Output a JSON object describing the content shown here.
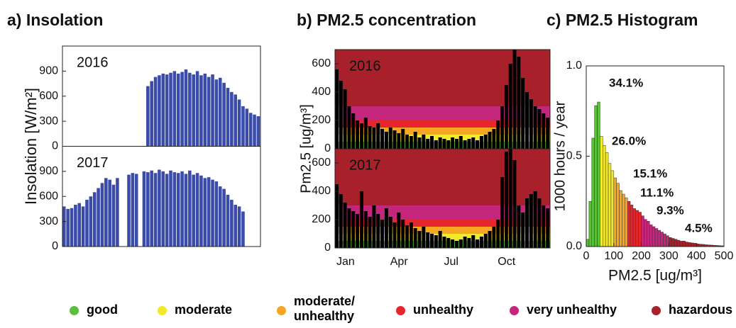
{
  "chart_data": [
    {
      "type": "bar",
      "title": "a) Insolation",
      "ylabel": "Insolation [W/m²]",
      "color": "#3b4ba8",
      "ylim": [
        0,
        1200
      ],
      "yticks": [
        0,
        300,
        600,
        900
      ],
      "series": [
        {
          "name": "2016",
          "values": [
            0,
            0,
            0,
            0,
            0,
            0,
            0,
            0,
            0,
            0,
            0,
            0,
            0,
            0,
            0,
            0,
            0,
            0,
            0,
            0,
            0,
            0,
            720,
            780,
            830,
            850,
            870,
            860,
            880,
            900,
            870,
            890,
            920,
            880,
            860,
            900,
            850,
            870,
            830,
            860,
            800,
            820,
            760,
            700,
            650,
            620,
            560,
            480,
            450,
            400,
            380,
            360
          ]
        },
        {
          "name": "2017",
          "values": [
            480,
            450,
            460,
            500,
            520,
            480,
            560,
            600,
            650,
            700,
            760,
            820,
            800,
            740,
            820,
            0,
            0,
            860,
            880,
            870,
            0,
            900,
            890,
            910,
            880,
            920,
            900,
            870,
            910,
            890,
            880,
            900,
            870,
            910,
            860,
            880,
            850,
            820,
            830,
            800,
            780,
            720,
            690,
            620,
            560,
            500,
            480,
            420,
            null,
            null,
            null,
            null
          ]
        }
      ]
    },
    {
      "type": "bar",
      "title": "b) PM2.5 concentration",
      "ylabel": "Pm2.5 [ug/m³]",
      "color": "#000000",
      "ylim": [
        0,
        700
      ],
      "yticks": [
        0,
        200,
        400,
        600
      ],
      "xticks": [
        "Jan",
        "Apr",
        "Jul",
        "Oct"
      ],
      "series": [
        {
          "name": "2016",
          "values": [
            560,
            480,
            420,
            300,
            250,
            200,
            180,
            220,
            160,
            150,
            180,
            140,
            120,
            150,
            130,
            110,
            140,
            100,
            90,
            120,
            80,
            100,
            70,
            90,
            60,
            80,
            70,
            60,
            80,
            70,
            90,
            60,
            70,
            80,
            60,
            90,
            100,
            120,
            140,
            200,
            300,
            450,
            600,
            700,
            650,
            500,
            400,
            350,
            300,
            280,
            250,
            220
          ]
        },
        {
          "name": "2017",
          "values": [
            450,
            380,
            320,
            280,
            260,
            240,
            400,
            260,
            220,
            300,
            240,
            200,
            280,
            220,
            180,
            250,
            200,
            160,
            180,
            140,
            120,
            150,
            110,
            100,
            90,
            120,
            80,
            70,
            60,
            50,
            60,
            80,
            70,
            90,
            60,
            80,
            100,
            120,
            150,
            200,
            500,
            680,
            700,
            620,
            300,
            250,
            350,
            380,
            400,
            350,
            300,
            280
          ]
        }
      ]
    },
    {
      "type": "histogram",
      "title": "c) PM2.5 Histogram",
      "xlabel": "PM2.5 [ug/m³]",
      "ylabel": "1000 hours / year",
      "xlim": [
        0,
        500
      ],
      "xticks": [
        0,
        100,
        200,
        300,
        400,
        500
      ],
      "ylim": [
        0,
        1
      ],
      "yticks": [
        {
          "value": 0,
          "label": "0.0"
        },
        {
          "value": 0.5,
          "label": "0.5"
        },
        {
          "value": 1,
          "label": "1.0"
        }
      ],
      "bins": [
        0,
        10,
        20,
        30,
        40,
        50,
        60,
        70,
        80,
        90,
        100,
        110,
        120,
        130,
        140,
        150,
        160,
        170,
        180,
        190,
        200,
        210,
        220,
        230,
        240,
        250,
        260,
        270,
        280,
        290,
        300,
        310,
        320,
        330,
        340,
        350,
        360,
        370,
        380,
        390,
        400,
        410,
        420,
        430,
        440,
        450,
        460,
        470,
        480,
        490,
        500
      ],
      "values": [
        0.04,
        0.25,
        0.6,
        0.78,
        0.8,
        0.61,
        0.56,
        0.52,
        0.46,
        0.42,
        0.38,
        0.35,
        0.31,
        0.29,
        0.27,
        0.25,
        0.23,
        0.21,
        0.2,
        0.19,
        0.17,
        0.15,
        0.14,
        0.12,
        0.11,
        0.1,
        0.09,
        0.08,
        0.07,
        0.06,
        0.05,
        0.045,
        0.04,
        0.035,
        0.03,
        0.03,
        0.025,
        0.022,
        0.02,
        0.018,
        0.015,
        0.013,
        0.012,
        0.01,
        0.009,
        0.008,
        0.007,
        0.006,
        0.005,
        0.004
      ],
      "shares": {
        "values": [
          34.1,
          26.0,
          15.1,
          11.1,
          9.3,
          4.5
        ],
        "value_labels": [
          "34.1%",
          "26.0%",
          "15.1%",
          "11.1%",
          "9.3%",
          "4.5%"
        ]
      }
    }
  ],
  "legend": {
    "names": [
      "good",
      "moderate",
      "moderate/\nunhealthy",
      "unhealthy",
      "very unhealthy",
      "hazardous"
    ],
    "colors": [
      "#5cbf3c",
      "#f2e92a",
      "#f6a623",
      "#e5262c",
      "#c4267c",
      "#a8202a"
    ],
    "thresholds": [
      50,
      100,
      150,
      200,
      300
    ]
  }
}
